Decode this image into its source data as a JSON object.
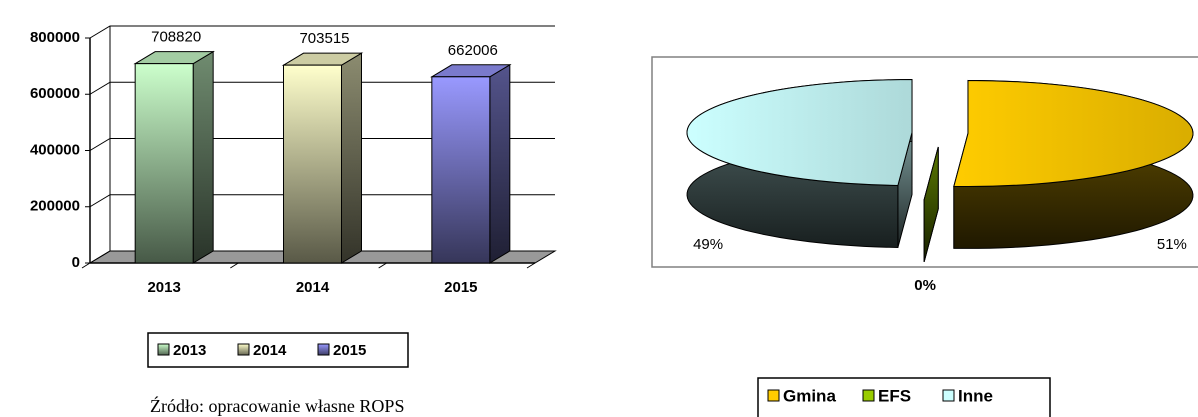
{
  "chart_data": [
    {
      "type": "bar",
      "categories": [
        "2013",
        "2014",
        "2015"
      ],
      "values": [
        708820,
        703515,
        662006
      ],
      "colors": [
        "#ccffcc",
        "#ffffcc",
        "#9999ff"
      ],
      "ylim": [
        0,
        800000
      ],
      "yticks": [
        0,
        200000,
        400000,
        600000,
        800000
      ],
      "grid": true
    },
    {
      "type": "pie",
      "categories": [
        "Gmina",
        "EFS",
        "Inne"
      ],
      "values": [
        51,
        0,
        49
      ],
      "value_labels": [
        "51%",
        "0%",
        "49%"
      ],
      "colors": [
        "#ffcc00",
        "#99cc00",
        "#ccffff"
      ]
    }
  ],
  "source": "Źródło: opracowanie własne ROPS"
}
